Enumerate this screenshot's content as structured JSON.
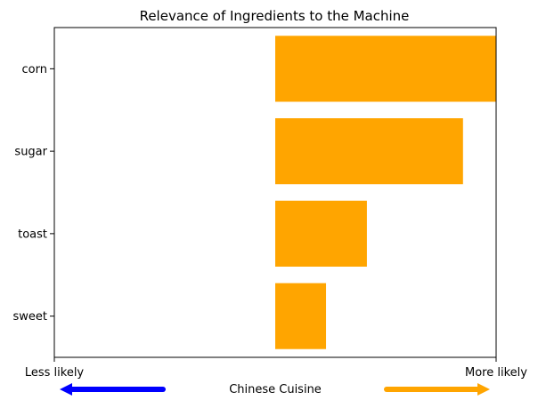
{
  "chart_data": {
    "type": "bar",
    "orientation": "horizontal",
    "title": "Relevance of Ingredients to the Machine",
    "categories": [
      "corn",
      "sugar",
      "toast",
      "sweet"
    ],
    "values": [
      1.0,
      0.85,
      0.415,
      0.23
    ],
    "xlim": [
      -1,
      1
    ],
    "xlabel": "Chinese Cuisine",
    "x_end_labels": {
      "left": "Less likely",
      "right": "More likely"
    },
    "bar_color": "#ffa500",
    "left_arrow_color": "#0000ff",
    "right_arrow_color": "#ffa500",
    "grid": false,
    "legend": "none"
  }
}
